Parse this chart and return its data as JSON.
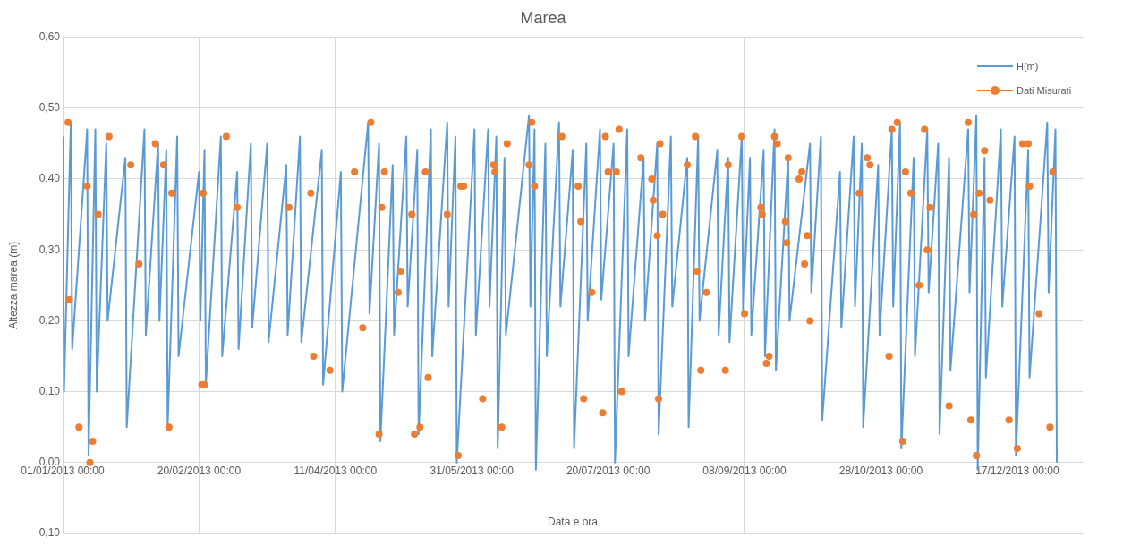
{
  "chart_data": {
    "type": "line",
    "title": "Marea",
    "xlabel": "Data e ora",
    "ylabel": "Altezza marea (m)",
    "xlim": [
      "2013-01-01",
      "2014-01-10"
    ],
    "xticks": [
      {
        "value": "2013-01-01",
        "label": "01/01/2013 00:00"
      },
      {
        "value": "2013-02-20",
        "label": "20/02/2013 00:00"
      },
      {
        "value": "2013-04-11",
        "label": "11/04/2013 00:00"
      },
      {
        "value": "2013-05-31",
        "label": "31/05/2013 00:00"
      },
      {
        "value": "2013-07-20",
        "label": "20/07/2013 00:00"
      },
      {
        "value": "2013-09-08",
        "label": "08/09/2013 00:00"
      },
      {
        "value": "2013-10-28",
        "label": "28/10/2013 00:00"
      },
      {
        "value": "2013-12-17",
        "label": "17/12/2013 00:00"
      }
    ],
    "ylim": [
      -0.1,
      0.6
    ],
    "yticks": [
      {
        "value": -0.1,
        "label": "-0,10"
      },
      {
        "value": 0,
        "label": "0,00"
      },
      {
        "value": 0.1,
        "label": "0,10"
      },
      {
        "value": 0.2,
        "label": "0,20"
      },
      {
        "value": 0.3,
        "label": "0,30"
      },
      {
        "value": 0.4,
        "label": "0,40"
      },
      {
        "value": 0.5,
        "label": "0,50"
      },
      {
        "value": 0.6,
        "label": "0,60"
      }
    ],
    "grid": true,
    "legend": "top right",
    "series": [
      {
        "name": "H(m)",
        "marker": "none",
        "color": "#5b9bd5",
        "x": [
          "2013-01-01",
          "2013-01-01T12:00",
          "2013-01-04",
          "2013-01-04T12:00",
          "2013-01-10",
          "2013-01-10T12:00",
          "2013-01-13",
          "2013-01-13T12:00",
          "2013-01-17",
          "2013-01-17T12:00",
          "2013-01-24",
          "2013-01-24T12:00",
          "2013-01-31",
          "2013-01-31T12:00",
          "2013-02-05",
          "2013-02-05T12:00",
          "2013-02-08",
          "2013-02-08T12:00",
          "2013-02-12",
          "2013-02-12T12:00",
          "2013-02-20",
          "2013-02-20T12:00",
          "2013-02-22",
          "2013-02-22T12:00",
          "2013-02-28",
          "2013-02-28T12:00",
          "2013-03-06",
          "2013-03-06T12:00",
          "2013-03-11",
          "2013-03-11T12:00",
          "2013-03-17",
          "2013-03-17T12:00",
          "2013-03-24",
          "2013-03-24T12:00",
          "2013-03-29",
          "2013-03-29T12:00",
          "2013-04-06",
          "2013-04-06T12:00",
          "2013-04-13",
          "2013-04-13T12:00",
          "2013-04-23",
          "2013-04-23T12:00",
          "2013-04-27",
          "2013-04-27T12:00",
          "2013-05-02",
          "2013-05-02T12:00",
          "2013-05-07",
          "2013-05-07T12:00",
          "2013-05-11",
          "2013-05-11T12:00",
          "2013-05-16",
          "2013-05-16T12:00",
          "2013-05-22",
          "2013-05-22T12:00",
          "2013-05-25",
          "2013-05-25T12:00",
          "2013-06-01",
          "2013-06-01T12:00",
          "2013-06-06",
          "2013-06-06T12:00",
          "2013-06-09",
          "2013-06-09T12:00",
          "2013-06-12",
          "2013-06-12T12:00",
          "2013-06-21",
          "2013-06-21T12:00",
          "2013-06-23",
          "2013-06-23T12:00",
          "2013-06-27",
          "2013-06-27T12:00",
          "2013-07-02",
          "2013-07-02T12:00",
          "2013-07-07",
          "2013-07-07T12:00",
          "2013-07-12",
          "2013-07-12T12:00",
          "2013-07-17",
          "2013-07-17T12:00",
          "2013-07-22",
          "2013-07-22T12:00",
          "2013-07-27",
          "2013-07-27T12:00",
          "2013-08-02",
          "2013-08-02T12:00",
          "2013-08-07",
          "2013-08-07T12:00",
          "2013-08-12",
          "2013-08-12T12:00",
          "2013-08-18",
          "2013-08-18T12:00",
          "2013-08-22",
          "2013-08-22T12:00",
          "2013-08-29",
          "2013-08-29T12:00",
          "2013-09-02",
          "2013-09-02T12:00",
          "2013-09-07",
          "2013-09-07T12:00",
          "2013-09-10",
          "2013-09-10T12:00",
          "2013-09-15",
          "2013-09-15T12:00",
          "2013-09-19",
          "2013-09-19T12:00",
          "2013-09-24",
          "2013-09-24T12:00",
          "2013-10-02",
          "2013-10-02T12:00",
          "2013-10-06",
          "2013-10-06T12:00",
          "2013-10-13",
          "2013-10-13T12:00",
          "2013-10-18",
          "2013-10-18T12:00",
          "2013-10-21",
          "2013-10-21T12:00",
          "2013-10-27",
          "2013-10-27T12:00",
          "2013-11-01",
          "2013-11-01T12:00",
          "2013-11-04",
          "2013-11-04T12:00",
          "2013-11-09",
          "2013-11-09T12:00",
          "2013-11-14",
          "2013-11-14T12:00",
          "2013-11-18",
          "2013-11-18T12:00",
          "2013-11-22",
          "2013-11-22T12:00",
          "2013-11-29",
          "2013-11-29T12:00",
          "2013-12-02",
          "2013-12-02T12:00",
          "2013-12-05",
          "2013-12-05T12:00",
          "2013-12-11",
          "2013-12-11T12:00",
          "2013-12-16",
          "2013-12-16T12:00",
          "2013-12-21",
          "2013-12-21T12:00",
          "2013-12-28",
          "2013-12-28T12:00",
          "2013-12-31",
          "2013-12-31T12:00"
        ],
        "values": [
          0.46,
          0.1,
          0.48,
          0.16,
          0.47,
          0.01,
          0.47,
          0.1,
          0.45,
          0.2,
          0.43,
          0.05,
          0.47,
          0.18,
          0.45,
          0.2,
          0.44,
          0.05,
          0.46,
          0.15,
          0.41,
          0.2,
          0.44,
          0.11,
          0.46,
          0.15,
          0.41,
          0.16,
          0.45,
          0.19,
          0.45,
          0.17,
          0.42,
          0.18,
          0.46,
          0.17,
          0.44,
          0.11,
          0.41,
          0.1,
          0.48,
          0.21,
          0.45,
          0.03,
          0.42,
          0.18,
          0.46,
          0.22,
          0.44,
          0.04,
          0.47,
          0.15,
          0.48,
          0.22,
          0.46,
          0.0,
          0.47,
          0.18,
          0.47,
          0.22,
          0.46,
          0.02,
          0.43,
          0.18,
          0.49,
          0.22,
          0.47,
          -0.01,
          0.45,
          0.15,
          0.48,
          0.22,
          0.44,
          0.02,
          0.45,
          0.2,
          0.47,
          0.23,
          0.45,
          0.0,
          0.47,
          0.15,
          0.43,
          0.2,
          0.45,
          0.04,
          0.46,
          0.22,
          0.43,
          0.05,
          0.46,
          0.2,
          0.44,
          0.18,
          0.43,
          0.17,
          0.46,
          0.21,
          0.43,
          0.18,
          0.44,
          0.15,
          0.47,
          0.13,
          0.43,
          0.2,
          0.45,
          0.24,
          0.46,
          0.06,
          0.41,
          0.19,
          0.46,
          0.22,
          0.45,
          0.05,
          0.42,
          0.18,
          0.47,
          0.22,
          0.48,
          0.02,
          0.43,
          0.15,
          0.47,
          0.24,
          0.45,
          0.04,
          0.43,
          0.13,
          0.47,
          0.24,
          0.49,
          -0.01,
          0.43,
          0.12,
          0.47,
          0.22,
          0.46,
          0.01,
          0.44,
          0.12,
          0.48,
          0.24,
          0.47,
          0.0
        ]
      },
      {
        "name": "Dati Misurati",
        "type": "scatter",
        "marker": "circle",
        "color": "#ed7d31",
        "x": [
          "2013-01-03",
          "2013-01-03T12:00",
          "2013-01-07",
          "2013-01-10",
          "2013-01-11",
          "2013-01-12",
          "2013-01-14",
          "2013-01-18",
          "2013-01-26",
          "2013-01-29",
          "2013-02-04",
          "2013-02-07",
          "2013-02-09",
          "2013-02-10",
          "2013-02-21",
          "2013-02-21T12:00",
          "2013-02-22",
          "2013-03-02",
          "2013-03-06",
          "2013-03-25",
          "2013-04-02",
          "2013-04-03",
          "2013-04-09",
          "2013-04-18",
          "2013-04-21",
          "2013-04-24",
          "2013-04-27",
          "2013-04-28",
          "2013-04-29",
          "2013-05-04",
          "2013-05-05",
          "2013-05-09",
          "2013-05-10",
          "2013-05-12",
          "2013-05-14",
          "2013-05-15",
          "2013-05-22",
          "2013-05-26",
          "2013-05-27",
          "2013-05-28",
          "2013-06-04",
          "2013-06-08",
          "2013-06-08T12:00",
          "2013-06-11",
          "2013-06-13",
          "2013-06-21",
          "2013-06-22",
          "2013-06-23",
          "2013-07-03",
          "2013-07-09",
          "2013-07-10",
          "2013-07-11",
          "2013-07-14",
          "2013-07-18",
          "2013-07-19",
          "2013-07-20",
          "2013-07-23",
          "2013-07-24",
          "2013-07-25",
          "2013-08-01",
          "2013-08-05",
          "2013-08-05T12:00",
          "2013-08-07",
          "2013-08-07T12:00",
          "2013-08-08",
          "2013-08-09",
          "2013-08-18",
          "2013-08-21",
          "2013-08-21T12:00",
          "2013-08-23",
          "2013-08-25",
          "2013-09-01",
          "2013-09-02",
          "2013-09-07",
          "2013-09-08",
          "2013-09-14",
          "2013-09-14T12:00",
          "2013-09-16",
          "2013-09-17",
          "2013-09-19",
          "2013-09-20",
          "2013-09-23",
          "2013-09-23T12:00",
          "2013-09-24",
          "2013-09-28",
          "2013-09-29",
          "2013-09-30",
          "2013-10-01",
          "2013-10-02",
          "2013-10-20",
          "2013-10-23",
          "2013-10-24",
          "2013-10-31",
          "2013-11-01",
          "2013-11-03",
          "2013-11-05",
          "2013-11-06",
          "2013-11-08",
          "2013-11-11",
          "2013-11-13",
          "2013-11-14",
          "2013-11-15",
          "2013-11-22",
          "2013-11-29",
          "2013-11-30",
          "2013-12-01",
          "2013-12-02",
          "2013-12-03",
          "2013-12-05",
          "2013-12-07",
          "2013-12-14",
          "2013-12-17",
          "2013-12-19",
          "2013-12-21",
          "2013-12-21T12:00",
          "2013-12-25",
          "2013-12-29",
          "2013-12-30"
        ],
        "values": [
          0.48,
          0.23,
          0.05,
          0.39,
          0.0,
          0.03,
          0.35,
          0.46,
          0.42,
          0.28,
          0.45,
          0.42,
          0.05,
          0.38,
          0.11,
          0.38,
          0.11,
          0.46,
          0.36,
          0.36,
          0.38,
          0.15,
          0.13,
          0.41,
          0.19,
          0.48,
          0.04,
          0.36,
          0.41,
          0.24,
          0.27,
          0.35,
          0.04,
          0.05,
          0.41,
          0.12,
          0.35,
          0.01,
          0.39,
          0.39,
          0.09,
          0.42,
          0.41,
          0.05,
          0.45,
          0.42,
          0.48,
          0.39,
          0.46,
          0.39,
          0.34,
          0.09,
          0.24,
          0.07,
          0.46,
          0.41,
          0.41,
          0.47,
          0.1,
          0.43,
          0.4,
          0.37,
          0.32,
          0.09,
          0.45,
          0.35,
          0.42,
          0.46,
          0.27,
          0.13,
          0.24,
          0.13,
          0.42,
          0.46,
          0.21,
          0.36,
          0.35,
          0.14,
          0.15,
          0.46,
          0.45,
          0.34,
          0.31,
          0.43,
          0.4,
          0.41,
          0.28,
          0.32,
          0.2,
          0.38,
          0.43,
          0.42,
          0.15,
          0.47,
          0.48,
          0.03,
          0.41,
          0.38,
          0.25,
          0.47,
          0.3,
          0.36,
          0.08,
          0.48,
          0.06,
          0.35,
          0.01,
          0.38,
          0.44,
          0.37,
          0.06,
          0.02,
          0.45,
          0.45,
          0.39,
          0.21,
          0.05,
          0.41
        ]
      }
    ]
  }
}
